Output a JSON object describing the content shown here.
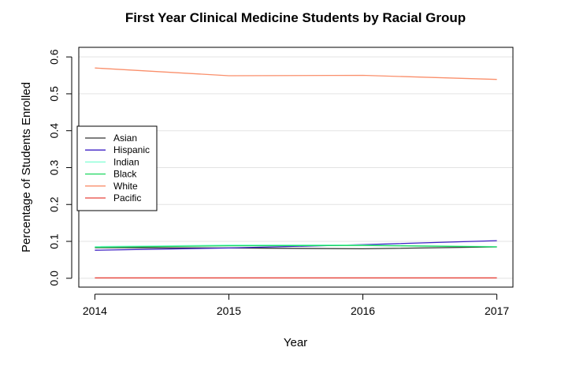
{
  "chart_data": {
    "type": "line",
    "title": "First Year Clinical Medicine Students by Racial Group",
    "xlabel": "Year",
    "ylabel": "Percentage of Students Enrolled",
    "x": [
      2014,
      2015,
      2016,
      2017
    ],
    "x_ticks": [
      "2014",
      "2015",
      "2016",
      "2017"
    ],
    "y_ticks": [
      "0.0",
      "0.1",
      "0.2",
      "0.3",
      "0.4",
      "0.5",
      "0.6"
    ],
    "xlim": [
      2013.88,
      2017.12
    ],
    "ylim": [
      -0.024,
      0.626
    ],
    "grid": true,
    "legend_position": "left",
    "series": [
      {
        "name": "Asian",
        "color": "#333333",
        "values": [
          0.083,
          0.082,
          0.08,
          0.085
        ]
      },
      {
        "name": "Hispanic",
        "color": "#3d1fc4",
        "values": [
          0.076,
          0.082,
          0.091,
          0.102
        ]
      },
      {
        "name": "Indian",
        "color": "#7fffd4",
        "values": [
          0.086,
          0.09,
          0.09,
          0.086
        ]
      },
      {
        "name": "Black",
        "color": "#1ed760",
        "values": [
          0.084,
          0.088,
          0.089,
          0.085
        ]
      },
      {
        "name": "White",
        "color": "#fa8f6b",
        "values": [
          0.57,
          0.549,
          0.55,
          0.539
        ]
      },
      {
        "name": "Pacific",
        "color": "#e8453c",
        "values": [
          0.001,
          0.001,
          0.001,
          0.001
        ]
      }
    ]
  }
}
